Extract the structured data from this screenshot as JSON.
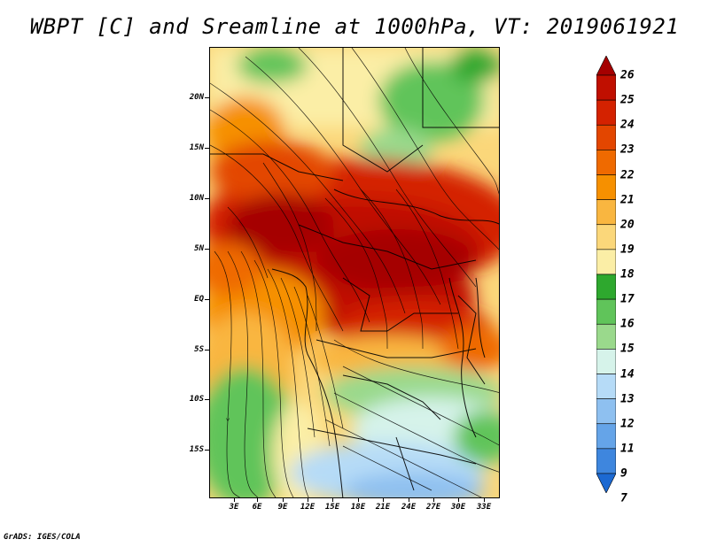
{
  "title": "WBPT [C] and Sreamline at 1000hPa, VT: 2019061921",
  "footer": "GrADS: IGES/COLA",
  "map": {
    "lat_labels": [
      "20N",
      "15N",
      "10N",
      "5N",
      "EQ",
      "5S",
      "10S",
      "15S"
    ],
    "lon_labels": [
      "3E",
      "6E",
      "9E",
      "12E",
      "15E",
      "18E",
      "21E",
      "24E",
      "27E",
      "30E",
      "33E"
    ]
  },
  "colorbar": {
    "labels": [
      "26",
      "25",
      "24",
      "23",
      "22",
      "21",
      "20",
      "19",
      "18",
      "17",
      "16",
      "15",
      "14",
      "13",
      "12",
      "11",
      "9",
      "7"
    ],
    "colors": [
      "#a50000",
      "#c00f00",
      "#d42200",
      "#e34600",
      "#ef6a00",
      "#f69000",
      "#f9b640",
      "#fbd77a",
      "#fbeea6",
      "#2ea82e",
      "#60c45a",
      "#9ad98c",
      "#d6f3ea",
      "#b6dbf7",
      "#8ec0f0",
      "#65a4e8",
      "#3e86de",
      "#1c69d2"
    ],
    "layout_direction": "vertical-right"
  }
}
